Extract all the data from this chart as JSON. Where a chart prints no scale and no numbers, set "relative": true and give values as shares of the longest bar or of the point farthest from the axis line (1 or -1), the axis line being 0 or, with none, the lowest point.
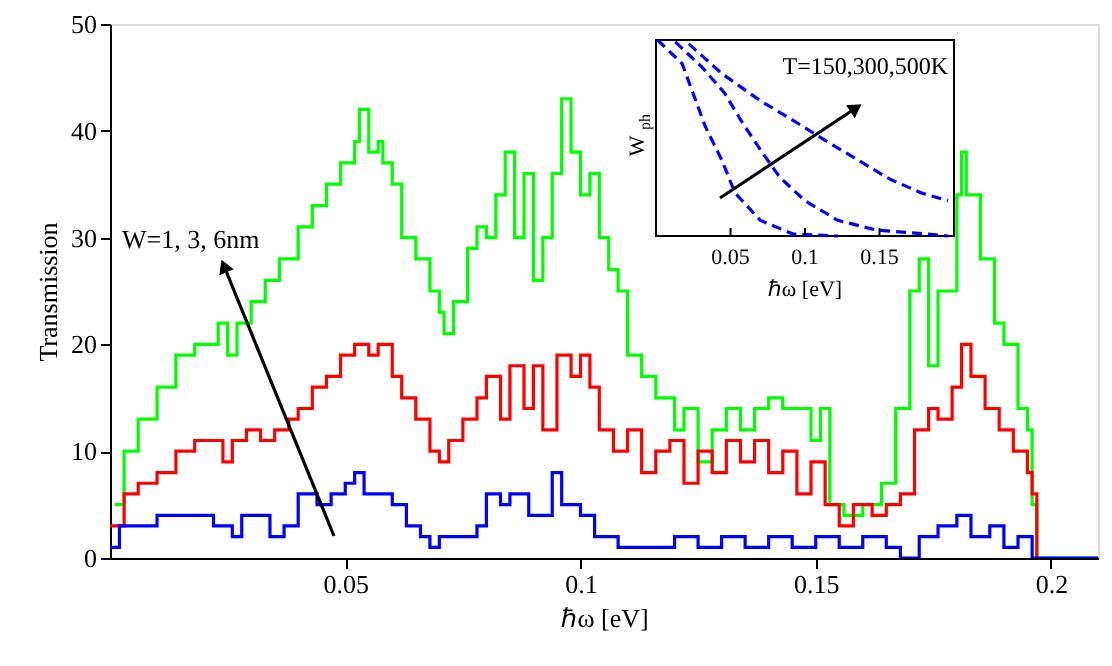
{
  "chart_data": [
    {
      "type": "step",
      "xlabel": "ℏω [eV]",
      "ylabel": "Transmission",
      "xlim": [
        0,
        0.21
      ],
      "xticks": [
        0.05,
        0.1,
        0.15,
        0.2
      ],
      "ylim": [
        0,
        50
      ],
      "yticks": [
        0,
        10,
        20,
        30,
        40,
        50
      ],
      "grid": false,
      "annotations": [
        "W=1, 3, 6nm"
      ],
      "series": [
        {
          "color": "#00ff00",
          "x": [
            0.001,
            0.003,
            0.006,
            0.01,
            0.014,
            0.018,
            0.021,
            0.023,
            0.025,
            0.027,
            0.03,
            0.033,
            0.036,
            0.04,
            0.043,
            0.046,
            0.049,
            0.052,
            0.053,
            0.055,
            0.057,
            0.058,
            0.06,
            0.062,
            0.065,
            0.068,
            0.07,
            0.071,
            0.073,
            0.076,
            0.078,
            0.08,
            0.082,
            0.084,
            0.086,
            0.088,
            0.09,
            0.092,
            0.094,
            0.096,
            0.098,
            0.1,
            0.102,
            0.104,
            0.106,
            0.108,
            0.11,
            0.113,
            0.116,
            0.12,
            0.122,
            0.125,
            0.128,
            0.131,
            0.134,
            0.137,
            0.14,
            0.143,
            0.146,
            0.149,
            0.151,
            0.153,
            0.156,
            0.16,
            0.164,
            0.167,
            0.17,
            0.172,
            0.174,
            0.176,
            0.18,
            0.181,
            0.182,
            0.185,
            0.188,
            0.19,
            0.193,
            0.195,
            0.196,
            0.197,
            0.21
          ],
          "values": [
            5,
            10,
            13,
            16,
            19,
            20,
            20,
            22,
            19,
            22,
            24,
            26,
            28,
            31,
            33,
            35,
            37,
            39,
            42,
            38,
            39,
            37,
            35,
            30,
            28,
            25,
            23,
            21,
            24,
            29,
            31,
            30,
            34,
            38,
            30,
            36,
            26,
            30,
            36,
            43,
            38,
            34,
            36,
            30,
            27,
            25,
            19,
            17,
            15,
            12,
            14,
            9,
            12,
            14,
            12,
            14,
            15,
            14,
            14,
            11,
            14,
            5,
            4,
            5,
            7,
            14,
            25,
            28,
            18,
            25,
            34,
            38,
            34,
            28,
            22,
            20,
            14,
            12,
            5,
            0,
            0
          ]
        },
        {
          "color": "#ff0000",
          "x": [
            0,
            0.003,
            0.006,
            0.01,
            0.014,
            0.018,
            0.021,
            0.024,
            0.026,
            0.029,
            0.032,
            0.035,
            0.038,
            0.04,
            0.043,
            0.046,
            0.049,
            0.052,
            0.055,
            0.057,
            0.06,
            0.062,
            0.065,
            0.068,
            0.07,
            0.072,
            0.075,
            0.078,
            0.08,
            0.083,
            0.085,
            0.088,
            0.09,
            0.092,
            0.095,
            0.098,
            0.1,
            0.102,
            0.104,
            0.107,
            0.11,
            0.113,
            0.116,
            0.119,
            0.122,
            0.125,
            0.128,
            0.131,
            0.134,
            0.137,
            0.14,
            0.143,
            0.146,
            0.149,
            0.152,
            0.155,
            0.158,
            0.162,
            0.165,
            0.168,
            0.171,
            0.174,
            0.176,
            0.179,
            0.181,
            0.183,
            0.186,
            0.189,
            0.192,
            0.195,
            0.196,
            0.197
          ],
          "values": [
            3,
            6,
            7,
            8,
            10,
            11,
            11,
            9,
            11,
            12,
            11,
            12,
            13,
            14,
            16,
            17,
            19,
            20,
            19,
            20,
            17,
            15,
            13,
            10,
            9,
            11,
            13,
            15,
            17,
            13,
            18,
            14,
            18,
            12,
            19,
            17,
            19,
            16,
            12,
            10,
            12,
            8,
            10,
            11,
            7,
            10,
            8,
            11,
            9,
            11,
            8,
            10,
            6,
            9,
            5,
            3,
            5,
            4,
            5,
            6,
            12,
            14,
            13,
            16,
            20,
            17,
            14,
            12,
            10,
            8,
            6,
            0
          ]
        },
        {
          "color": "#0000ff",
          "x": [
            0,
            0.002,
            0.01,
            0.02,
            0.022,
            0.026,
            0.028,
            0.032,
            0.034,
            0.037,
            0.04,
            0.044,
            0.047,
            0.05,
            0.052,
            0.054,
            0.058,
            0.06,
            0.063,
            0.066,
            0.068,
            0.07,
            0.074,
            0.078,
            0.08,
            0.083,
            0.085,
            0.089,
            0.092,
            0.094,
            0.096,
            0.1,
            0.103,
            0.108,
            0.115,
            0.12,
            0.125,
            0.13,
            0.135,
            0.14,
            0.145,
            0.15,
            0.155,
            0.16,
            0.165,
            0.168,
            0.172,
            0.176,
            0.18,
            0.183,
            0.187,
            0.19,
            0.193,
            0.196,
            0.21
          ],
          "values": [
            1,
            3,
            4,
            4,
            3,
            2,
            4,
            4,
            2,
            3,
            6,
            5,
            6,
            7,
            8,
            6,
            6,
            5,
            3,
            2,
            1,
            2,
            2,
            3,
            6,
            5,
            6,
            4,
            4,
            8,
            5,
            4,
            2,
            1,
            1,
            2,
            1,
            2,
            1,
            2,
            1,
            2,
            1,
            2,
            1,
            0,
            2,
            3,
            4,
            2,
            3,
            1,
            2,
            0,
            0
          ]
        }
      ]
    },
    {
      "type": "line",
      "relative": true,
      "xlabel": "ℏω [eV]",
      "ylabel": "W$_{ph}$",
      "xlim": [
        0,
        0.2
      ],
      "xticks": [
        0.05,
        0.1,
        0.15
      ],
      "line_style": "dashed",
      "annotations": [
        "T=150,300,500K"
      ],
      "series": [
        {
          "color": "#0000ff",
          "x": [
            0.001,
            0.0175,
            0.033,
            0.044,
            0.053,
            0.07,
            0.092,
            0.122
          ],
          "values": [
            1.0,
            0.88,
            0.56,
            0.39,
            0.22,
            0.08,
            0.01,
            0
          ]
        },
        {
          "color": "#0000ff",
          "x": [
            0.013,
            0.031,
            0.046,
            0.057,
            0.07,
            0.083,
            0.1,
            0.122,
            0.148,
            0.183,
            0.196
          ],
          "values": [
            0.99,
            0.86,
            0.73,
            0.59,
            0.44,
            0.3,
            0.18,
            0.08,
            0.03,
            0.01,
            0
          ]
        },
        {
          "color": "#0000ff",
          "x": [
            0.022,
            0.044,
            0.07,
            0.092,
            0.113,
            0.135,
            0.157,
            0.178,
            0.196
          ],
          "values": [
            0.98,
            0.83,
            0.69,
            0.59,
            0.49,
            0.39,
            0.29,
            0.22,
            0.18
          ]
        }
      ]
    }
  ]
}
